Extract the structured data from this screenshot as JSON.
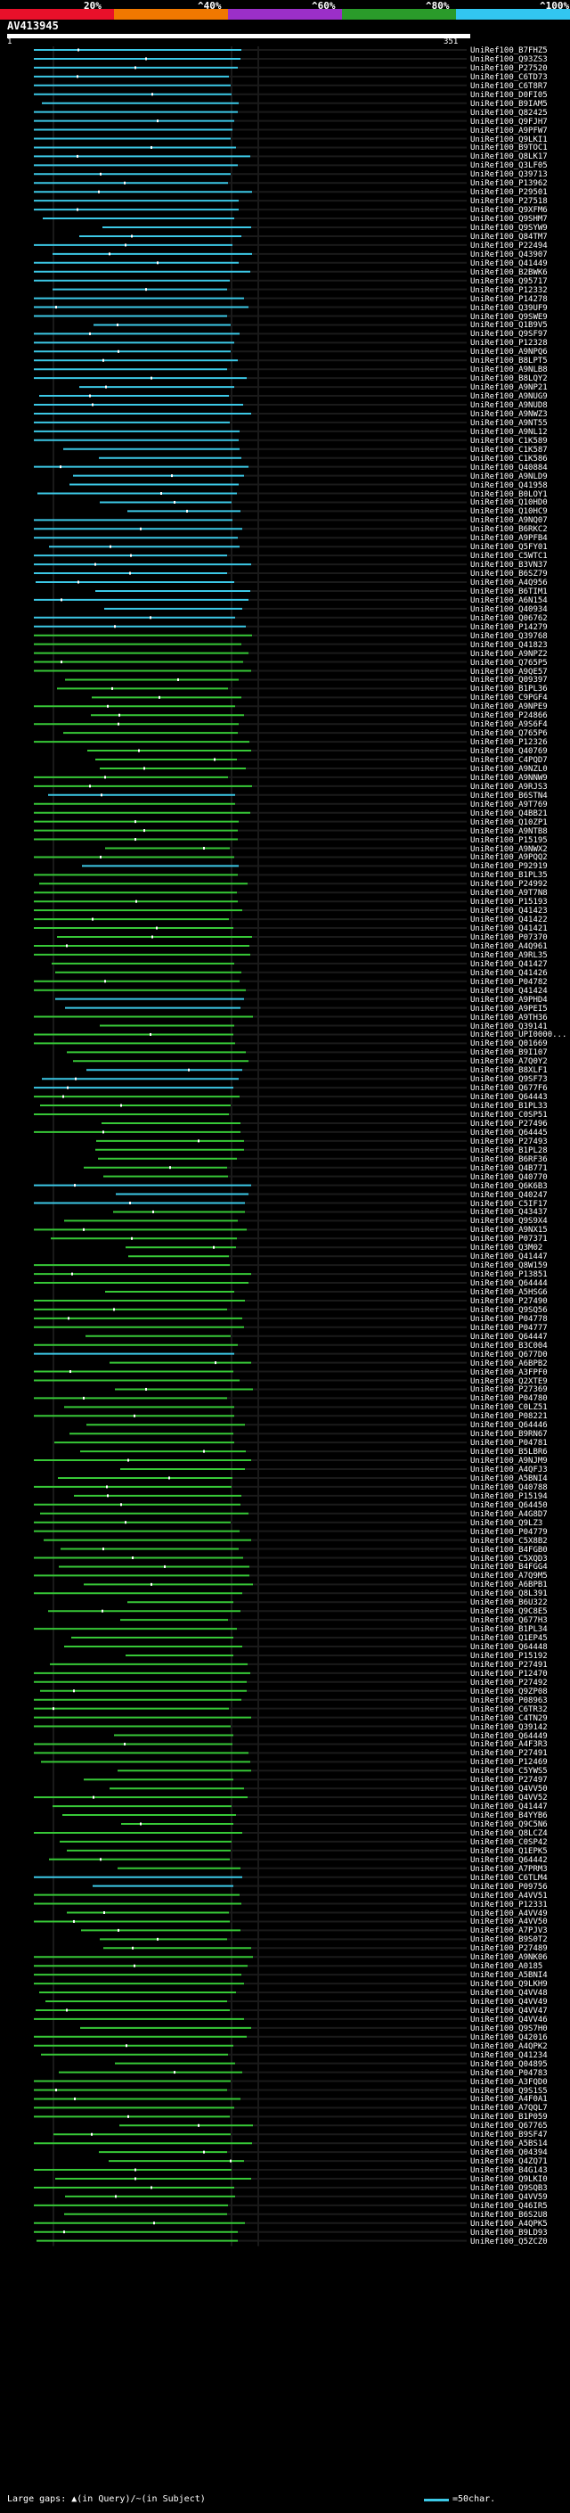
{
  "colors": {
    "bg": "#000000",
    "query": "#ffffff",
    "hit_cyan": "#3cc8e6",
    "hit_green": "#37c837",
    "gap": "#1a1a1a",
    "vline": "#555555"
  },
  "scale": {
    "labels": [
      "20%",
      "^40%",
      "^60%",
      "^80%",
      "^100%"
    ],
    "colors": [
      "#e8102a",
      "#f07800",
      "#9b2fc8",
      "#2a9b2a",
      "#32c6f0"
    ]
  },
  "query": {
    "name": "AV413945",
    "start": "1",
    "end": "351"
  },
  "hits": [
    {
      "id": "UniRef100_B7FHZ5",
      "c": "cyan"
    },
    {
      "id": "UniRef100_Q93ZS3",
      "c": "cyan"
    },
    {
      "id": "UniRef100_P27520",
      "c": "cyan"
    },
    {
      "id": "UniRef100_C6TD73",
      "c": "cyan"
    },
    {
      "id": "UniRef100_C6T8R7",
      "c": "cyan"
    },
    {
      "id": "UniRef100_D0FI05",
      "c": "cyan"
    },
    {
      "id": "UniRef100_B9IAM5",
      "c": "cyan"
    },
    {
      "id": "UniRef100_Q82425",
      "c": "cyan"
    },
    {
      "id": "UniRef100_Q9FJH7",
      "c": "cyan"
    },
    {
      "id": "UniRef100_A9PFW7",
      "c": "cyan"
    },
    {
      "id": "UniRef100_Q9LKI1",
      "c": "cyan"
    },
    {
      "id": "UniRef100_B9TOC1",
      "c": "cyan"
    },
    {
      "id": "UniRef100_Q8LK17",
      "c": "cyan"
    },
    {
      "id": "UniRef100_Q3LF05",
      "c": "cyan"
    },
    {
      "id": "UniRef100_Q39713",
      "c": "cyan"
    },
    {
      "id": "UniRef100_P13962",
      "c": "cyan"
    },
    {
      "id": "UniRef100_P29501",
      "c": "cyan"
    },
    {
      "id": "UniRef100_P27518",
      "c": "cyan"
    },
    {
      "id": "UniRef100_Q9XFM6",
      "c": "cyan"
    },
    {
      "id": "UniRef100_Q9SHM7",
      "c": "cyan"
    },
    {
      "id": "UniRef100_Q9SYW9",
      "c": "cyan"
    },
    {
      "id": "UniRef100_Q84TM7",
      "c": "cyan"
    },
    {
      "id": "UniRef100_P22494",
      "c": "cyan"
    },
    {
      "id": "UniRef100_Q43907",
      "c": "cyan"
    },
    {
      "id": "UniRef100_Q41449",
      "c": "cyan"
    },
    {
      "id": "UniRef100_B2BWK6",
      "c": "cyan"
    },
    {
      "id": "UniRef100_Q95717",
      "c": "cyan"
    },
    {
      "id": "UniRef100_P12332",
      "c": "cyan"
    },
    {
      "id": "UniRef100_P14278",
      "c": "cyan"
    },
    {
      "id": "UniRef100_Q39UF9",
      "c": "cyan"
    },
    {
      "id": "UniRef100_Q9SWE9",
      "c": "cyan"
    },
    {
      "id": "UniRef100_Q1B9V5",
      "c": "cyan"
    },
    {
      "id": "UniRef100_Q9SF97",
      "c": "cyan"
    },
    {
      "id": "UniRef100_P12328",
      "c": "cyan"
    },
    {
      "id": "UniRef100_A9NPQ6",
      "c": "cyan"
    },
    {
      "id": "UniRef100_B8LPT5",
      "c": "cyan"
    },
    {
      "id": "UniRef100_A9NLB8",
      "c": "cyan"
    },
    {
      "id": "UniRef100_B8LQY2",
      "c": "cyan"
    },
    {
      "id": "UniRef100_A9NP21",
      "c": "cyan"
    },
    {
      "id": "UniRef100_A9NUG9",
      "c": "cyan"
    },
    {
      "id": "UniRef100_A9NUD8",
      "c": "cyan"
    },
    {
      "id": "UniRef100_A9NWZ3",
      "c": "cyan"
    },
    {
      "id": "UniRef100_A9NT55",
      "c": "cyan"
    },
    {
      "id": "UniRef100_A9NL12",
      "c": "cyan"
    },
    {
      "id": "UniRef100_C1K589",
      "c": "cyan"
    },
    {
      "id": "UniRef100_C1K587",
      "c": "cyan"
    },
    {
      "id": "UniRef100_C1K586",
      "c": "cyan"
    },
    {
      "id": "UniRef100_Q40884",
      "c": "cyan"
    },
    {
      "id": "UniRef100_A9NLD9",
      "c": "cyan"
    },
    {
      "id": "UniRef100_Q41958",
      "c": "cyan"
    },
    {
      "id": "UniRef100_B0LOY1",
      "c": "cyan"
    },
    {
      "id": "UniRef100_Q10HD0",
      "c": "cyan"
    },
    {
      "id": "UniRef100_Q10HC9",
      "c": "cyan"
    },
    {
      "id": "UniRef100_A9NQ07",
      "c": "cyan"
    },
    {
      "id": "UniRef100_B6RKC2",
      "c": "cyan"
    },
    {
      "id": "UniRef100_A9PFB4",
      "c": "cyan"
    },
    {
      "id": "UniRef100_Q5FY01",
      "c": "cyan"
    },
    {
      "id": "UniRef100_C5WTC1",
      "c": "cyan"
    },
    {
      "id": "UniRef100_B3VN37",
      "c": "cyan"
    },
    {
      "id": "UniRef100_B6SZ79",
      "c": "cyan"
    },
    {
      "id": "UniRef100_A4Q956",
      "c": "cyan"
    },
    {
      "id": "UniRef100_B6TIM1",
      "c": "cyan"
    },
    {
      "id": "UniRef100_A6N154",
      "c": "cyan"
    },
    {
      "id": "UniRef100_Q40934",
      "c": "cyan"
    },
    {
      "id": "UniRef100_Q06762",
      "c": "cyan"
    },
    {
      "id": "UniRef100_P14279",
      "c": "cyan"
    },
    {
      "id": "UniRef100_Q39768",
      "c": "green"
    },
    {
      "id": "UniRef100_Q41823",
      "c": "green"
    },
    {
      "id": "UniRef100_A9NPZ2",
      "c": "green"
    },
    {
      "id": "UniRef100_Q765P5",
      "c": "green"
    },
    {
      "id": "UniRef100_A9QE57",
      "c": "green"
    },
    {
      "id": "UniRef100_Q09397",
      "c": "green"
    },
    {
      "id": "UniRef100_B1PL36",
      "c": "green"
    },
    {
      "id": "UniRef100_C9PGF4",
      "c": "green"
    },
    {
      "id": "UniRef100_A9NPE9",
      "c": "green"
    },
    {
      "id": "UniRef100_P24866",
      "c": "green"
    },
    {
      "id": "UniRef100_A9S6F4",
      "c": "green"
    },
    {
      "id": "UniRef100_Q765P6",
      "c": "green"
    },
    {
      "id": "UniRef100_P12326",
      "c": "green"
    },
    {
      "id": "UniRef100_Q40769",
      "c": "green"
    },
    {
      "id": "UniRef100_C4PQD7",
      "c": "green"
    },
    {
      "id": "UniRef100_A9NZL0",
      "c": "green"
    },
    {
      "id": "UniRef100_A9NNW9",
      "c": "green"
    },
    {
      "id": "UniRef100_A9RJS3",
      "c": "green"
    },
    {
      "id": "UniRef100_B6STN4",
      "c": "cyan"
    },
    {
      "id": "UniRef100_A9T769",
      "c": "green"
    },
    {
      "id": "UniRef100_Q4BB21",
      "c": "green"
    },
    {
      "id": "UniRef100_Q10ZP1",
      "c": "green"
    },
    {
      "id": "UniRef100_A9NTB8",
      "c": "green"
    },
    {
      "id": "UniRef100_P15195",
      "c": "green"
    },
    {
      "id": "UniRef100_A9NWX2",
      "c": "green"
    },
    {
      "id": "UniRef100_A9PQQ2",
      "c": "green"
    },
    {
      "id": "UniRef100_P92919",
      "c": "cyan"
    },
    {
      "id": "UniRef100_B1PL35",
      "c": "green"
    },
    {
      "id": "UniRef100_P24992",
      "c": "green"
    },
    {
      "id": "UniRef100_A9T7N8",
      "c": "green"
    },
    {
      "id": "UniRef100_P15193",
      "c": "green"
    },
    {
      "id": "UniRef100_Q41423",
      "c": "green"
    },
    {
      "id": "UniRef100_Q41422",
      "c": "green"
    },
    {
      "id": "UniRef100_Q41421",
      "c": "green"
    },
    {
      "id": "UniRef100_P07370",
      "c": "green"
    },
    {
      "id": "UniRef100_A4Q961",
      "c": "green"
    },
    {
      "id": "UniRef100_A9RL35",
      "c": "green"
    },
    {
      "id": "UniRef100_Q41427",
      "c": "green"
    },
    {
      "id": "UniRef100_Q41426",
      "c": "green"
    },
    {
      "id": "UniRef100_P04782",
      "c": "green"
    },
    {
      "id": "UniRef100_Q41424",
      "c": "green"
    },
    {
      "id": "UniRef100_A9PHD4",
      "c": "cyan"
    },
    {
      "id": "UniRef100_A9PEI5",
      "c": "cyan"
    },
    {
      "id": "UniRef100_A9TH36",
      "c": "green"
    },
    {
      "id": "UniRef100_Q39141",
      "c": "green"
    },
    {
      "id": "UniRef100_UPI0000...",
      "c": "green"
    },
    {
      "id": "UniRef100_Q01669",
      "c": "green"
    },
    {
      "id": "UniRef100_B9I107",
      "c": "green"
    },
    {
      "id": "UniRef100_A7Q0Y2",
      "c": "green"
    },
    {
      "id": "UniRef100_B8XLF1",
      "c": "cyan"
    },
    {
      "id": "UniRef100_Q9SF73",
      "c": "cyan"
    },
    {
      "id": "UniRef100_Q677F6",
      "c": "cyan"
    },
    {
      "id": "UniRef100_Q64443",
      "c": "green"
    },
    {
      "id": "UniRef100_B1PL33",
      "c": "green"
    },
    {
      "id": "UniRef100_C0SP51",
      "c": "green"
    },
    {
      "id": "UniRef100_P27496",
      "c": "green"
    },
    {
      "id": "UniRef100_Q64445",
      "c": "green"
    },
    {
      "id": "UniRef100_P27493",
      "c": "green"
    },
    {
      "id": "UniRef100_B1PL28",
      "c": "green"
    },
    {
      "id": "UniRef100_B6RF36",
      "c": "green"
    },
    {
      "id": "UniRef100_Q4B771",
      "c": "green"
    },
    {
      "id": "UniRef100_Q40770",
      "c": "green"
    },
    {
      "id": "UniRef100_Q6K6B3",
      "c": "cyan"
    },
    {
      "id": "UniRef100_Q40247",
      "c": "cyan"
    },
    {
      "id": "UniRef100_C5IF17",
      "c": "cyan"
    },
    {
      "id": "UniRef100_Q43437",
      "c": "green"
    },
    {
      "id": "UniRef100_Q9S9X4",
      "c": "green"
    },
    {
      "id": "UniRef100_A9NX15",
      "c": "green"
    },
    {
      "id": "UniRef100_P07371",
      "c": "green"
    },
    {
      "id": "UniRef100_Q3M02",
      "c": "green"
    },
    {
      "id": "UniRef100_Q41447",
      "c": "green"
    },
    {
      "id": "UniRef100_Q8W159",
      "c": "green"
    },
    {
      "id": "UniRef100_P13851",
      "c": "green"
    },
    {
      "id": "UniRef100_Q64444",
      "c": "green"
    },
    {
      "id": "UniRef100_A5HSG6",
      "c": "green"
    },
    {
      "id": "UniRef100_P27490",
      "c": "green"
    },
    {
      "id": "UniRef100_Q9SQ56",
      "c": "green"
    },
    {
      "id": "UniRef100_P04778",
      "c": "green"
    },
    {
      "id": "UniRef100_P04777",
      "c": "green"
    },
    {
      "id": "UniRef100_Q64447",
      "c": "green"
    },
    {
      "id": "UniRef100_B3C004",
      "c": "green"
    },
    {
      "id": "UniRef100_Q677D0",
      "c": "cyan"
    },
    {
      "id": "UniRef100_A6BPB2",
      "c": "green"
    },
    {
      "id": "UniRef100_A3FPF0",
      "c": "green"
    },
    {
      "id": "UniRef100_Q2XTE9",
      "c": "green"
    },
    {
      "id": "UniRef100_P27369",
      "c": "green"
    },
    {
      "id": "UniRef100_P04780",
      "c": "green"
    },
    {
      "id": "UniRef100_C0LZ51",
      "c": "green"
    },
    {
      "id": "UniRef100_P08221",
      "c": "green"
    },
    {
      "id": "UniRef100_Q64446",
      "c": "green"
    },
    {
      "id": "UniRef100_B9RN67",
      "c": "green"
    },
    {
      "id": "UniRef100_P04781",
      "c": "green"
    },
    {
      "id": "UniRef100_B5LBR6",
      "c": "green"
    },
    {
      "id": "UniRef100_A9NJM9",
      "c": "green"
    },
    {
      "id": "UniRef100_A4QFJ3",
      "c": "green"
    },
    {
      "id": "UniRef100_A5BNI4",
      "c": "green"
    },
    {
      "id": "UniRef100_Q40788",
      "c": "green"
    },
    {
      "id": "UniRef100_P15194",
      "c": "green"
    },
    {
      "id": "UniRef100_Q64450",
      "c": "green"
    },
    {
      "id": "UniRef100_A4G8D7",
      "c": "green"
    },
    {
      "id": "UniRef100_Q9LZ3",
      "c": "green"
    },
    {
      "id": "UniRef100_P04779",
      "c": "green"
    },
    {
      "id": "UniRef100_C5X8B2",
      "c": "green"
    },
    {
      "id": "UniRef100_B4FGB0",
      "c": "green"
    },
    {
      "id": "UniRef100_C5XQD3",
      "c": "green"
    },
    {
      "id": "UniRef100_B4FGG4",
      "c": "green"
    },
    {
      "id": "UniRef100_A7Q9M5",
      "c": "green"
    },
    {
      "id": "UniRef100_A6BPB1",
      "c": "green"
    },
    {
      "id": "UniRef100_Q8L391",
      "c": "green"
    },
    {
      "id": "UniRef100_B6U322",
      "c": "green"
    },
    {
      "id": "UniRef100_Q9C8E5",
      "c": "green"
    },
    {
      "id": "UniRef100_Q677H3",
      "c": "green"
    },
    {
      "id": "UniRef100_B1PL34",
      "c": "green"
    },
    {
      "id": "UniRef100_Q1EP45",
      "c": "green"
    },
    {
      "id": "UniRef100_Q64448",
      "c": "green"
    },
    {
      "id": "UniRef100_P15192",
      "c": "green"
    },
    {
      "id": "UniRef100_P27491",
      "c": "green"
    },
    {
      "id": "UniRef100_P12470",
      "c": "green"
    },
    {
      "id": "UniRef100_P27492",
      "c": "green"
    },
    {
      "id": "UniRef100_Q9ZP08",
      "c": "green"
    },
    {
      "id": "UniRef100_P08963",
      "c": "green"
    },
    {
      "id": "UniRef100_C6TR32",
      "c": "green"
    },
    {
      "id": "UniRef100_C4TN29",
      "c": "green"
    },
    {
      "id": "UniRef100_Q39142",
      "c": "green"
    },
    {
      "id": "UniRef100_Q64449",
      "c": "green"
    },
    {
      "id": "UniRef100_A4F3R3",
      "c": "green"
    },
    {
      "id": "UniRef100_P27491",
      "c": "green"
    },
    {
      "id": "UniRef100_P12469",
      "c": "green"
    },
    {
      "id": "UniRef100_C5YWS5",
      "c": "green"
    },
    {
      "id": "UniRef100_P27497",
      "c": "green"
    },
    {
      "id": "UniRef100_Q4VV50",
      "c": "green"
    },
    {
      "id": "UniRef100_Q4VV52",
      "c": "green"
    },
    {
      "id": "UniRef100_Q41447",
      "c": "green"
    },
    {
      "id": "UniRef100_B4YYB6",
      "c": "green"
    },
    {
      "id": "UniRef100_Q9C5N6",
      "c": "green"
    },
    {
      "id": "UniRef100_Q8LCZ4",
      "c": "green"
    },
    {
      "id": "UniRef100_C0SP42",
      "c": "green"
    },
    {
      "id": "UniRef100_Q1EPK5",
      "c": "green"
    },
    {
      "id": "UniRef100_Q64442",
      "c": "green"
    },
    {
      "id": "UniRef100_A7PRM3",
      "c": "green"
    },
    {
      "id": "UniRef100_C6TLM4",
      "c": "cyan"
    },
    {
      "id": "UniRef100_P09756",
      "c": "cyan"
    },
    {
      "id": "UniRef100_A4VV51",
      "c": "green"
    },
    {
      "id": "UniRef100_P12331",
      "c": "green"
    },
    {
      "id": "UniRef100_A4VV49",
      "c": "green"
    },
    {
      "id": "UniRef100_A4VV50",
      "c": "green"
    },
    {
      "id": "UniRef100_A7PJV3",
      "c": "green"
    },
    {
      "id": "UniRef100_B9S0T2",
      "c": "green"
    },
    {
      "id": "UniRef100_P27489",
      "c": "green"
    },
    {
      "id": "UniRef100_A9NK06",
      "c": "green"
    },
    {
      "id": "UniRef100_A0185",
      "c": "green"
    },
    {
      "id": "UniRef100_A5BNI4",
      "c": "green"
    },
    {
      "id": "UniRef100_Q9LKH9",
      "c": "green"
    },
    {
      "id": "UniRef100_Q4VV48",
      "c": "green"
    },
    {
      "id": "UniRef100_Q4VV49",
      "c": "green"
    },
    {
      "id": "UniRef100_Q4VV47",
      "c": "green"
    },
    {
      "id": "UniRef100_Q4VV46",
      "c": "green"
    },
    {
      "id": "UniRef100_Q9S7H0",
      "c": "green"
    },
    {
      "id": "UniRef100_Q42016",
      "c": "green"
    },
    {
      "id": "UniRef100_A4QPK2",
      "c": "green"
    },
    {
      "id": "UniRef100_Q41234",
      "c": "green"
    },
    {
      "id": "UniRef100_Q04895",
      "c": "green"
    },
    {
      "id": "UniRef100_P04783",
      "c": "green"
    },
    {
      "id": "UniRef100_A3FQD0",
      "c": "green"
    },
    {
      "id": "UniRef100_Q9S1S5",
      "c": "green"
    },
    {
      "id": "UniRef100_A4F0A1",
      "c": "green"
    },
    {
      "id": "UniRef100_A7QQL7",
      "c": "green"
    },
    {
      "id": "UniRef100_B1P059",
      "c": "green"
    },
    {
      "id": "UniRef100_Q67765",
      "c": "green"
    },
    {
      "id": "UniRef100_B9SF47",
      "c": "green"
    },
    {
      "id": "UniRef100_A5BS14",
      "c": "green"
    },
    {
      "id": "UniRef100_Q04394",
      "c": "green"
    },
    {
      "id": "UniRef100_Q4ZQ71",
      "c": "green"
    },
    {
      "id": "UniRef100_B4G143",
      "c": "green"
    },
    {
      "id": "UniRef100_Q9LKI0",
      "c": "green"
    },
    {
      "id": "UniRef100_Q9SQB3",
      "c": "green"
    },
    {
      "id": "UniRef100_Q4VV59",
      "c": "green"
    },
    {
      "id": "UniRef100_Q46IR5",
      "c": "green"
    },
    {
      "id": "UniRef100_B6S2U8",
      "c": "green"
    },
    {
      "id": "UniRef100_A4QPK5",
      "c": "green"
    },
    {
      "id": "UniRef100_B9LD93",
      "c": "green"
    },
    {
      "id": "UniRef100_Q5ZCZ0",
      "c": "green"
    }
  ],
  "legend": {
    "left": "Large gaps: ▲(in Query)/~(in Subject)",
    "right": "=50char."
  }
}
